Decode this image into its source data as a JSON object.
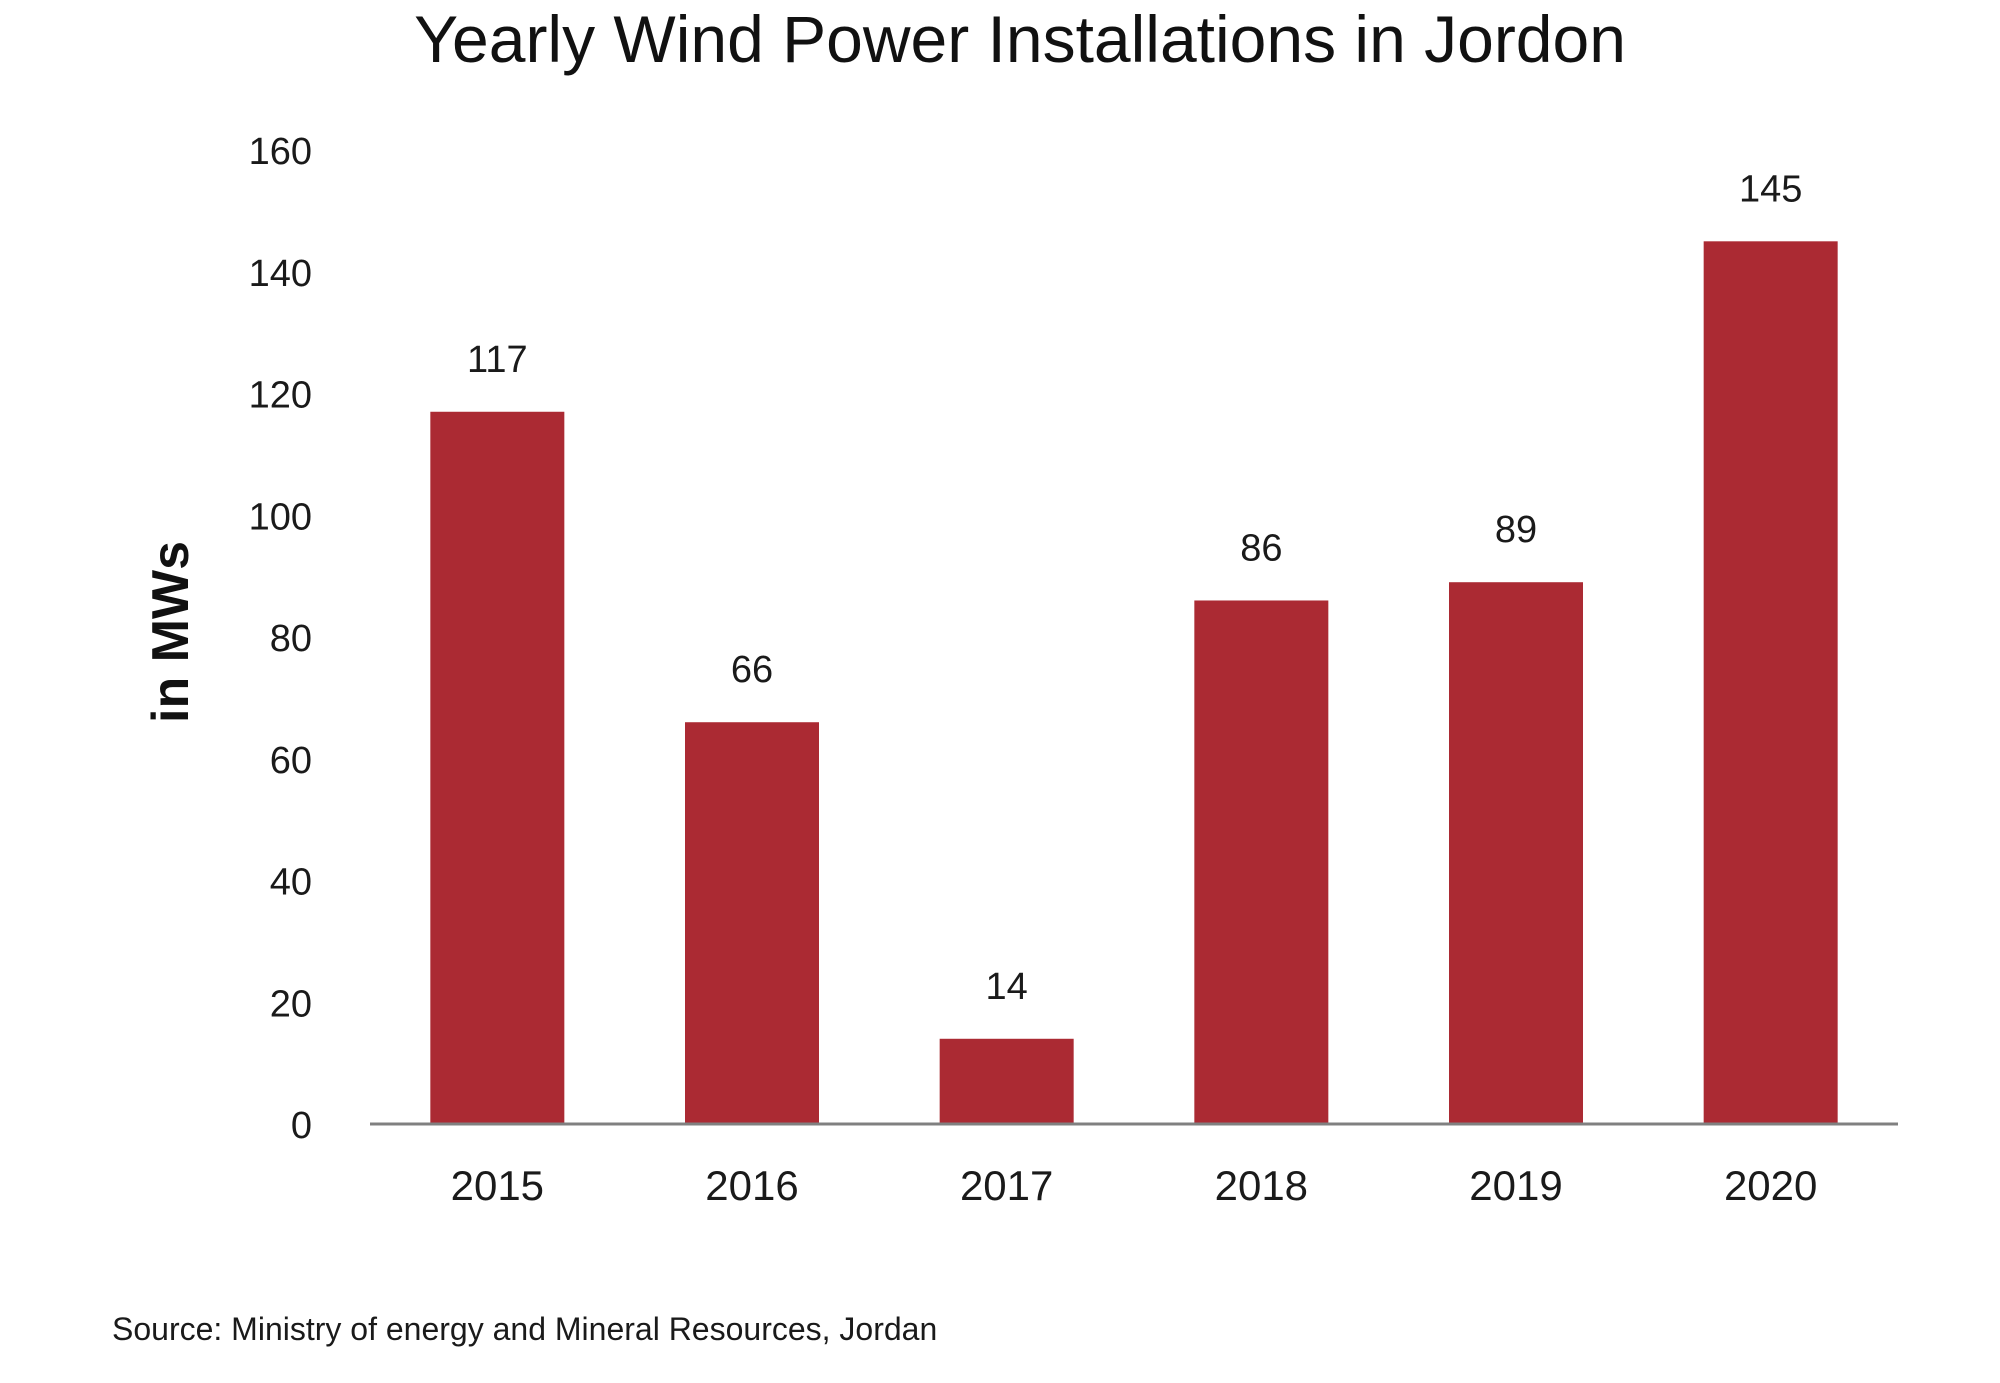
{
  "chart_data": {
    "type": "bar",
    "title": "Yearly Wind Power Installations in Jordon",
    "xlabel": "",
    "ylabel": "in MWs",
    "categories": [
      "2015",
      "2016",
      "2017",
      "2018",
      "2019",
      "2020"
    ],
    "values": [
      117,
      66,
      14,
      86,
      89,
      145
    ],
    "data_labels": [
      "117",
      "66",
      "14",
      "86",
      "89",
      "145"
    ],
    "ylim": [
      0,
      160
    ],
    "yticks": [
      0,
      20,
      40,
      60,
      80,
      100,
      120,
      140,
      160
    ],
    "ytick_labels": [
      "0",
      "20",
      "40",
      "60",
      "80",
      "100",
      "120",
      "140",
      "160"
    ],
    "grid": false,
    "legend": "none",
    "colors": {
      "bar": "#ab2a33",
      "axis": "#808080"
    }
  },
  "source": "Source: Ministry of energy and Mineral Resources, Jordan"
}
